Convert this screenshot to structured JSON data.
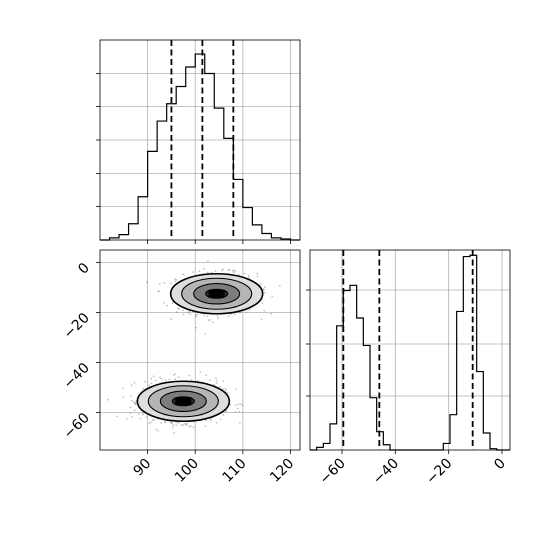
{
  "chart_data": [
    {
      "type": "histogram",
      "panel": "top-left",
      "xlim": [
        80,
        122
      ],
      "bin_edges": [
        80,
        82,
        84,
        86,
        88,
        90,
        92,
        94,
        96,
        98,
        100,
        102,
        104,
        106,
        108,
        110,
        112,
        114,
        116,
        118,
        120,
        122
      ],
      "counts": [
        0,
        2,
        5,
        15,
        40,
        82,
        110,
        126,
        142,
        160,
        172,
        154,
        122,
        94,
        56,
        30,
        14,
        6,
        2,
        1,
        0
      ],
      "ymax": 185,
      "quantiles": [
        95,
        101.5,
        108
      ],
      "grid": true
    },
    {
      "type": "histogram",
      "panel": "bottom-right",
      "xlim": [
        -72,
        3
      ],
      "xticks": [
        -60,
        -40,
        -20,
        0
      ],
      "xtick_labels": [
        "−60",
        "−40",
        "−20",
        "0"
      ],
      "bin_edges": [
        -72,
        -69.5,
        -67,
        -64.5,
        -62,
        -59.5,
        -57,
        -54.5,
        -52,
        -49.5,
        -47,
        -44.5,
        -42,
        -39.5,
        -37,
        -34.5,
        -32,
        -29.5,
        -27,
        -24.5,
        -22,
        -19.5,
        -17,
        -14.5,
        -12,
        -9.5,
        -7,
        -4.5,
        -2,
        0.5,
        3
      ],
      "counts": [
        0,
        2,
        5,
        20,
        95,
        122,
        126,
        101,
        80,
        40,
        14,
        4,
        0,
        0,
        0,
        0,
        0,
        0,
        0,
        0,
        5,
        27,
        106,
        148,
        149,
        60,
        13,
        1,
        0,
        0
      ],
      "ymax": 153,
      "quantiles": [
        -59.5,
        -46,
        -11
      ],
      "grid": true
    },
    {
      "type": "2d-density",
      "panel": "bottom-left",
      "xlim": [
        80,
        122
      ],
      "ylim": [
        -75,
        5
      ],
      "xticks": [
        90,
        100,
        110,
        120
      ],
      "xtick_labels": [
        "90",
        "100",
        "110",
        "120"
      ],
      "yticks": [
        0,
        -20,
        -40,
        -60
      ],
      "ytick_labels": [
        "0",
        "−20",
        "−40",
        "−60"
      ],
      "clusters": [
        {
          "center": [
            104.5,
            -12.5
          ],
          "spread": [
            4.2,
            4.0
          ]
        },
        {
          "center": [
            97.5,
            -55.5
          ],
          "spread": [
            4.2,
            4.0
          ]
        }
      ],
      "contours": "filled + line",
      "grid": true
    }
  ]
}
